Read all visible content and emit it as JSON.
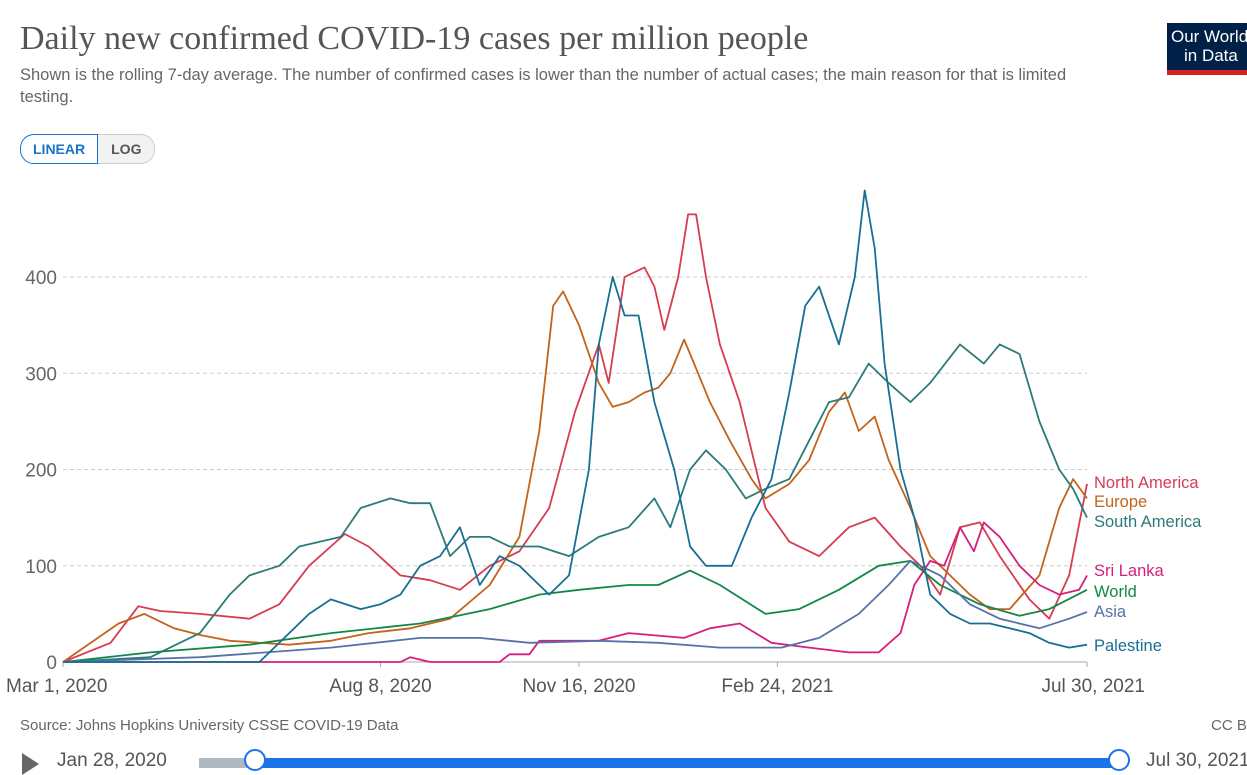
{
  "header": {
    "title": "Daily new confirmed COVID-19 cases per million people",
    "subtitle": "Shown is the rolling 7-day average. The number of confirmed cases is lower than the number of actual cases; the main reason for that is limited testing.",
    "logo_line1": "Our World",
    "logo_line2": "in Data"
  },
  "scale_toggle": {
    "linear": "LINEAR",
    "log": "LOG",
    "selected": "LINEAR"
  },
  "footer": {
    "source": "Source: Johns Hopkins University CSSE COVID-19 Data",
    "license": "CC BY"
  },
  "timeline": {
    "start": "Jan 28, 2020",
    "end": "Jul 30, 2021"
  },
  "chart_data": {
    "type": "line",
    "title": "",
    "xlabel": "",
    "ylabel": "",
    "xlim": [
      "2020-03-01",
      "2021-07-30"
    ],
    "ylim": [
      0,
      500
    ],
    "yticks": [
      0,
      100,
      200,
      300,
      400
    ],
    "xticks": [
      {
        "date": "2020-03-01",
        "label": "Mar 1, 2020"
      },
      {
        "date": "2020-08-08",
        "label": "Aug 8, 2020"
      },
      {
        "date": "2020-11-16",
        "label": "Nov 16, 2020"
      },
      {
        "date": "2021-02-24",
        "label": "Feb 24, 2021"
      },
      {
        "date": "2021-07-30",
        "label": "Jul 30, 2021"
      }
    ],
    "grid": "horizontal dashed",
    "legend": "right end labels",
    "series": [
      {
        "name": "North America",
        "color": "#d73c50",
        "points": [
          [
            "2020-03-01",
            0
          ],
          [
            "2020-03-25",
            20
          ],
          [
            "2020-04-08",
            58
          ],
          [
            "2020-04-19",
            53
          ],
          [
            "2020-05-09",
            50
          ],
          [
            "2020-06-03",
            45
          ],
          [
            "2020-06-18",
            60
          ],
          [
            "2020-07-03",
            100
          ],
          [
            "2020-07-21",
            133
          ],
          [
            "2020-08-02",
            120
          ],
          [
            "2020-08-18",
            90
          ],
          [
            "2020-09-02",
            85
          ],
          [
            "2020-09-17",
            75
          ],
          [
            "2020-10-02",
            100
          ],
          [
            "2020-10-17",
            115
          ],
          [
            "2020-11-01",
            160
          ],
          [
            "2020-11-14",
            260
          ],
          [
            "2020-11-26",
            330
          ],
          [
            "2020-12-01",
            290
          ],
          [
            "2020-12-09",
            400
          ],
          [
            "2020-12-19",
            410
          ],
          [
            "2020-12-24",
            390
          ],
          [
            "2020-12-29",
            345
          ],
          [
            "2021-01-05",
            400
          ],
          [
            "2021-01-10",
            465
          ],
          [
            "2021-01-14",
            465
          ],
          [
            "2021-01-19",
            400
          ],
          [
            "2021-01-26",
            330
          ],
          [
            "2021-02-05",
            270
          ],
          [
            "2021-02-18",
            160
          ],
          [
            "2021-03-02",
            125
          ],
          [
            "2021-03-17",
            110
          ],
          [
            "2021-04-01",
            140
          ],
          [
            "2021-04-14",
            150
          ],
          [
            "2021-04-27",
            120
          ],
          [
            "2021-05-07",
            100
          ],
          [
            "2021-05-17",
            70
          ],
          [
            "2021-05-27",
            140
          ],
          [
            "2021-06-06",
            145
          ],
          [
            "2021-06-16",
            110
          ],
          [
            "2021-07-01",
            65
          ],
          [
            "2021-07-11",
            45
          ],
          [
            "2021-07-21",
            90
          ],
          [
            "2021-07-30",
            185
          ]
        ]
      },
      {
        "name": "Europe",
        "color": "#c4631a",
        "points": [
          [
            "2020-03-01",
            0
          ],
          [
            "2020-03-29",
            40
          ],
          [
            "2020-04-11",
            50
          ],
          [
            "2020-04-26",
            35
          ],
          [
            "2020-05-09",
            28
          ],
          [
            "2020-05-24",
            22
          ],
          [
            "2020-06-23",
            18
          ],
          [
            "2020-07-14",
            22
          ],
          [
            "2020-08-02",
            30
          ],
          [
            "2020-08-23",
            35
          ],
          [
            "2020-09-12",
            45
          ],
          [
            "2020-10-02",
            80
          ],
          [
            "2020-10-17",
            130
          ],
          [
            "2020-10-27",
            240
          ],
          [
            "2020-11-03",
            370
          ],
          [
            "2020-11-08",
            385
          ],
          [
            "2020-11-16",
            350
          ],
          [
            "2020-11-26",
            290
          ],
          [
            "2020-12-03",
            265
          ],
          [
            "2020-12-11",
            270
          ],
          [
            "2020-12-19",
            280
          ],
          [
            "2020-12-26",
            285
          ],
          [
            "2021-01-01",
            300
          ],
          [
            "2021-01-08",
            335
          ],
          [
            "2021-01-13",
            310
          ],
          [
            "2021-01-21",
            270
          ],
          [
            "2021-01-31",
            230
          ],
          [
            "2021-02-11",
            190
          ],
          [
            "2021-02-18",
            170
          ],
          [
            "2021-03-02",
            185
          ],
          [
            "2021-03-12",
            210
          ],
          [
            "2021-03-22",
            260
          ],
          [
            "2021-03-30",
            280
          ],
          [
            "2021-04-06",
            240
          ],
          [
            "2021-04-14",
            255
          ],
          [
            "2021-04-21",
            210
          ],
          [
            "2021-05-02",
            160
          ],
          [
            "2021-05-12",
            110
          ],
          [
            "2021-05-22",
            90
          ],
          [
            "2021-06-01",
            70
          ],
          [
            "2021-06-11",
            55
          ],
          [
            "2021-06-21",
            55
          ],
          [
            "2021-07-06",
            90
          ],
          [
            "2021-07-16",
            160
          ],
          [
            "2021-07-23",
            190
          ],
          [
            "2021-07-30",
            170
          ]
        ]
      },
      {
        "name": "South America",
        "color": "#2b7b78",
        "points": [
          [
            "2020-03-01",
            0
          ],
          [
            "2020-04-14",
            5
          ],
          [
            "2020-05-09",
            30
          ],
          [
            "2020-05-24",
            70
          ],
          [
            "2020-06-03",
            90
          ],
          [
            "2020-06-18",
            100
          ],
          [
            "2020-06-28",
            120
          ],
          [
            "2020-07-19",
            130
          ],
          [
            "2020-07-29",
            160
          ],
          [
            "2020-08-13",
            170
          ],
          [
            "2020-08-23",
            165
          ],
          [
            "2020-09-02",
            165
          ],
          [
            "2020-09-12",
            110
          ],
          [
            "2020-09-22",
            130
          ],
          [
            "2020-10-02",
            130
          ],
          [
            "2020-10-12",
            120
          ],
          [
            "2020-10-27",
            120
          ],
          [
            "2020-11-11",
            110
          ],
          [
            "2020-11-26",
            130
          ],
          [
            "2020-12-11",
            140
          ],
          [
            "2020-12-24",
            170
          ],
          [
            "2021-01-01",
            140
          ],
          [
            "2021-01-11",
            200
          ],
          [
            "2021-01-19",
            220
          ],
          [
            "2021-01-29",
            200
          ],
          [
            "2021-02-08",
            170
          ],
          [
            "2021-02-18",
            180
          ],
          [
            "2021-03-02",
            190
          ],
          [
            "2021-03-12",
            230
          ],
          [
            "2021-03-22",
            270
          ],
          [
            "2021-04-01",
            275
          ],
          [
            "2021-04-11",
            310
          ],
          [
            "2021-04-21",
            290
          ],
          [
            "2021-05-02",
            270
          ],
          [
            "2021-05-12",
            290
          ],
          [
            "2021-05-27",
            330
          ],
          [
            "2021-06-08",
            310
          ],
          [
            "2021-06-16",
            330
          ],
          [
            "2021-06-26",
            320
          ],
          [
            "2021-07-06",
            250
          ],
          [
            "2021-07-16",
            200
          ],
          [
            "2021-07-23",
            180
          ],
          [
            "2021-07-30",
            150
          ]
        ]
      },
      {
        "name": "Sri Lanka",
        "color": "#d4207c",
        "points": [
          [
            "2020-03-01",
            0
          ],
          [
            "2020-08-18",
            0
          ],
          [
            "2020-08-23",
            5
          ],
          [
            "2020-09-02",
            0
          ],
          [
            "2020-10-07",
            0
          ],
          [
            "2020-10-12",
            8
          ],
          [
            "2020-10-22",
            8
          ],
          [
            "2020-10-27",
            22
          ],
          [
            "2020-11-26",
            22
          ],
          [
            "2020-12-11",
            30
          ],
          [
            "2021-01-08",
            25
          ],
          [
            "2021-01-21",
            35
          ],
          [
            "2021-02-05",
            40
          ],
          [
            "2021-02-21",
            20
          ],
          [
            "2021-03-12",
            15
          ],
          [
            "2021-04-01",
            10
          ],
          [
            "2021-04-16",
            10
          ],
          [
            "2021-04-27",
            30
          ],
          [
            "2021-05-04",
            80
          ],
          [
            "2021-05-12",
            105
          ],
          [
            "2021-05-19",
            100
          ],
          [
            "2021-05-27",
            140
          ],
          [
            "2021-06-03",
            115
          ],
          [
            "2021-06-08",
            145
          ],
          [
            "2021-06-16",
            130
          ],
          [
            "2021-06-26",
            100
          ],
          [
            "2021-07-06",
            80
          ],
          [
            "2021-07-16",
            70
          ],
          [
            "2021-07-26",
            75
          ],
          [
            "2021-07-30",
            90
          ]
        ]
      },
      {
        "name": "World",
        "color": "#13874a",
        "points": [
          [
            "2020-03-01",
            0
          ],
          [
            "2020-04-14",
            10
          ],
          [
            "2020-06-03",
            18
          ],
          [
            "2020-07-14",
            30
          ],
          [
            "2020-08-28",
            40
          ],
          [
            "2020-10-02",
            55
          ],
          [
            "2020-10-27",
            70
          ],
          [
            "2020-11-16",
            75
          ],
          [
            "2020-12-11",
            80
          ],
          [
            "2020-12-26",
            80
          ],
          [
            "2021-01-11",
            95
          ],
          [
            "2021-01-26",
            80
          ],
          [
            "2021-02-18",
            50
          ],
          [
            "2021-03-07",
            55
          ],
          [
            "2021-03-27",
            75
          ],
          [
            "2021-04-16",
            100
          ],
          [
            "2021-05-02",
            105
          ],
          [
            "2021-05-17",
            80
          ],
          [
            "2021-06-06",
            60
          ],
          [
            "2021-06-26",
            48
          ],
          [
            "2021-07-11",
            55
          ],
          [
            "2021-07-30",
            75
          ]
        ]
      },
      {
        "name": "Asia",
        "color": "#5673a8",
        "points": [
          [
            "2020-03-01",
            0
          ],
          [
            "2020-05-09",
            5
          ],
          [
            "2020-07-14",
            15
          ],
          [
            "2020-08-28",
            25
          ],
          [
            "2020-09-27",
            25
          ],
          [
            "2020-10-22",
            20
          ],
          [
            "2020-11-26",
            22
          ],
          [
            "2020-12-26",
            20
          ],
          [
            "2021-01-26",
            15
          ],
          [
            "2021-02-26",
            15
          ],
          [
            "2021-03-17",
            25
          ],
          [
            "2021-04-06",
            50
          ],
          [
            "2021-04-21",
            80
          ],
          [
            "2021-05-02",
            105
          ],
          [
            "2021-05-17",
            90
          ],
          [
            "2021-06-01",
            60
          ],
          [
            "2021-06-16",
            45
          ],
          [
            "2021-07-06",
            35
          ],
          [
            "2021-07-21",
            45
          ],
          [
            "2021-07-30",
            52
          ]
        ]
      },
      {
        "name": "Palestine",
        "color": "#176f96",
        "points": [
          [
            "2020-03-01",
            0
          ],
          [
            "2020-06-08",
            0
          ],
          [
            "2020-06-23",
            30
          ],
          [
            "2020-07-03",
            50
          ],
          [
            "2020-07-14",
            65
          ],
          [
            "2020-07-29",
            55
          ],
          [
            "2020-08-08",
            60
          ],
          [
            "2020-08-18",
            70
          ],
          [
            "2020-08-28",
            100
          ],
          [
            "2020-09-07",
            110
          ],
          [
            "2020-09-17",
            140
          ],
          [
            "2020-09-27",
            80
          ],
          [
            "2020-10-07",
            110
          ],
          [
            "2020-10-17",
            100
          ],
          [
            "2020-11-01",
            70
          ],
          [
            "2020-11-11",
            90
          ],
          [
            "2020-11-21",
            200
          ],
          [
            "2020-11-26",
            330
          ],
          [
            "2020-12-03",
            400
          ],
          [
            "2020-12-09",
            360
          ],
          [
            "2020-12-16",
            360
          ],
          [
            "2020-12-24",
            270
          ],
          [
            "2021-01-03",
            200
          ],
          [
            "2021-01-11",
            120
          ],
          [
            "2021-01-19",
            100
          ],
          [
            "2021-02-01",
            100
          ],
          [
            "2021-02-11",
            150
          ],
          [
            "2021-02-21",
            190
          ],
          [
            "2021-03-02",
            280
          ],
          [
            "2021-03-10",
            370
          ],
          [
            "2021-03-17",
            390
          ],
          [
            "2021-03-27",
            330
          ],
          [
            "2021-04-04",
            400
          ],
          [
            "2021-04-09",
            490
          ],
          [
            "2021-04-14",
            430
          ],
          [
            "2021-04-19",
            310
          ],
          [
            "2021-04-27",
            200
          ],
          [
            "2021-05-04",
            150
          ],
          [
            "2021-05-12",
            70
          ],
          [
            "2021-05-22",
            50
          ],
          [
            "2021-06-01",
            40
          ],
          [
            "2021-06-11",
            40
          ],
          [
            "2021-06-21",
            35
          ],
          [
            "2021-07-01",
            30
          ],
          [
            "2021-07-11",
            20
          ],
          [
            "2021-07-21",
            15
          ],
          [
            "2021-07-30",
            18
          ]
        ]
      }
    ]
  }
}
